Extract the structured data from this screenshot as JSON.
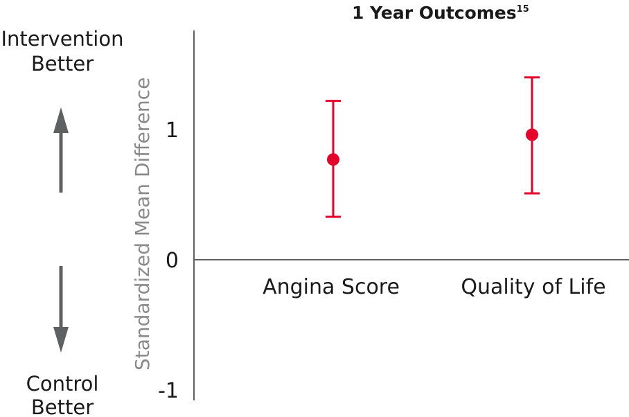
{
  "chart_data": {
    "type": "scatter",
    "title": "1 Year Outcomes",
    "title_superscript": "15",
    "ylabel": "Standardized Mean Difference",
    "ylim": [
      -1,
      1.7
    ],
    "yticks": [
      {
        "value": 1,
        "label": "1"
      },
      {
        "value": 0,
        "label": "0"
      },
      {
        "value": -1,
        "label": "-1"
      }
    ],
    "categories": [
      "Angina Score",
      "Quality of Life"
    ],
    "points": [
      {
        "category": "Angina Score",
        "value": 0.77,
        "ci_low": 0.33,
        "ci_high": 1.22
      },
      {
        "category": "Quality of Life",
        "value": 0.96,
        "ci_low": 0.51,
        "ci_high": 1.4
      }
    ],
    "point_color": "#e4002b",
    "axis_color": "#5f6062",
    "arrow_color": "#5f6062",
    "annotations": {
      "up_line1": "Intervention",
      "up_line2": "Better",
      "down_line1": "Control",
      "down_line2": "Better"
    }
  }
}
